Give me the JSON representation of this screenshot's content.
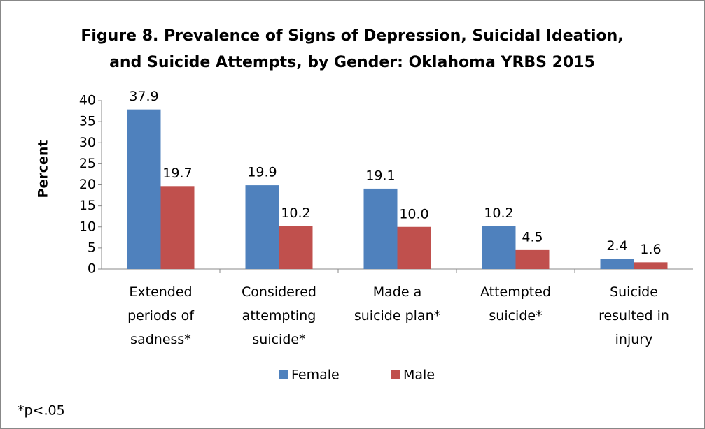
{
  "chart_data": {
    "type": "bar",
    "title": "Figure 8. Prevalence of Signs of Depression, Suicidal Ideation, and Suicide Attempts, by Gender: Oklahoma YRBS 2015",
    "ylabel": "Percent",
    "categories": [
      "Extended periods of sadness*",
      "Considered attempting suicide*",
      "Made a suicide plan*",
      "Attempted suicide*",
      "Suicide resulted in injury"
    ],
    "series": [
      {
        "name": "Female",
        "color": "#4f81bd",
        "values": [
          37.9,
          19.9,
          19.1,
          10.2,
          2.4
        ],
        "value_labels": [
          "37.9",
          "19.9",
          "19.1",
          "10.2",
          "2.4"
        ]
      },
      {
        "name": "Male",
        "color": "#c0504d",
        "values": [
          19.7,
          10.2,
          10.0,
          4.5,
          1.6
        ],
        "value_labels": [
          "19.7",
          "10.2",
          "10.0",
          "4.5",
          "1.6"
        ]
      }
    ],
    "ylim": [
      0,
      40
    ],
    "yticks": [
      0,
      5,
      10,
      15,
      20,
      25,
      30,
      35,
      40
    ],
    "grid": false,
    "legend": "bottom",
    "footnote": "*p<.05"
  }
}
